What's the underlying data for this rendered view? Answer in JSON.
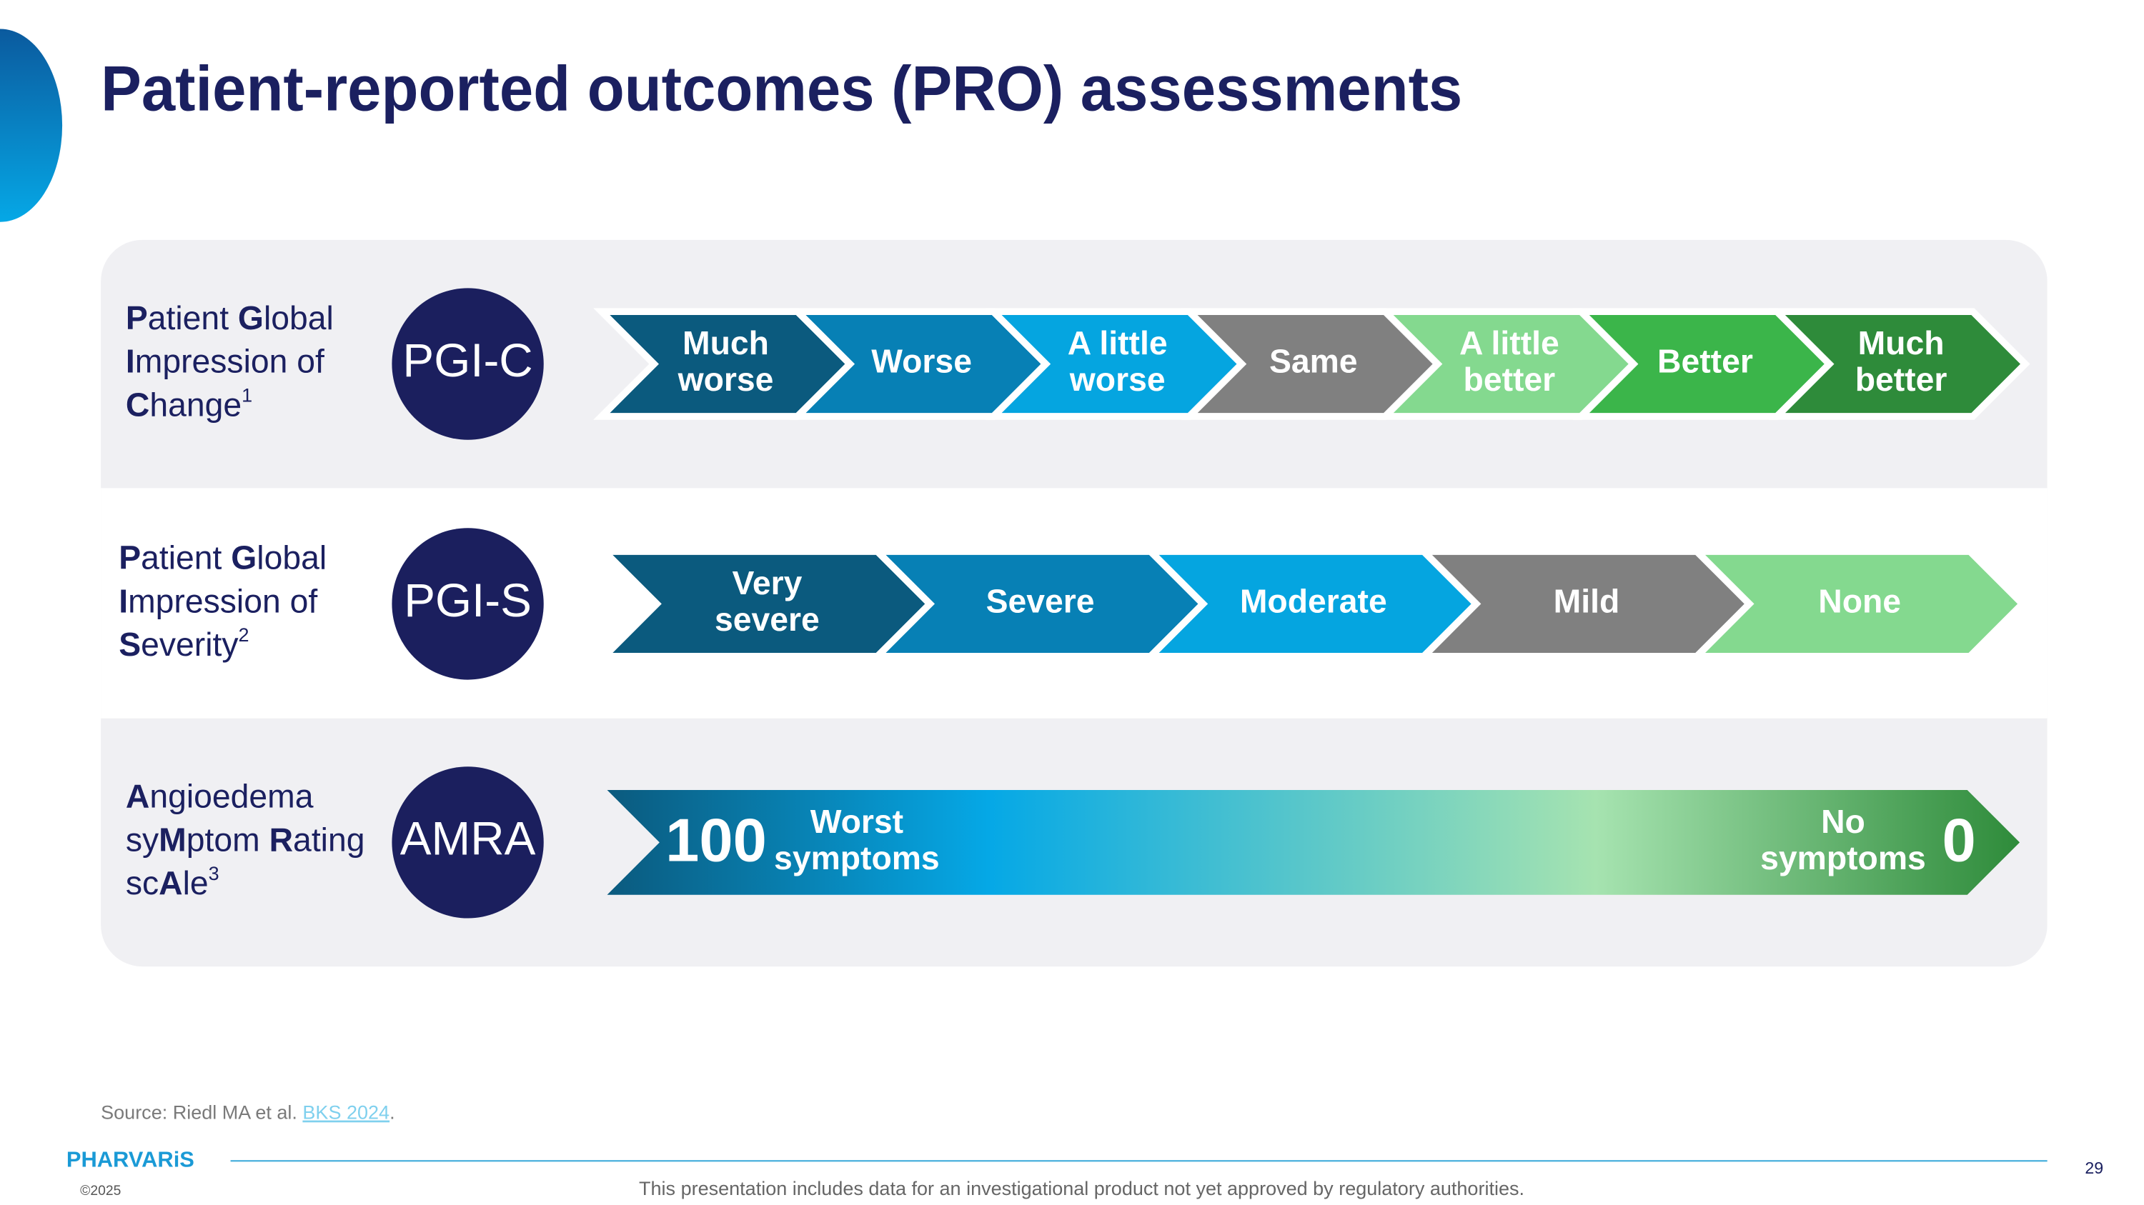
{
  "header": {
    "title": "Patient-reported outcomes (PRO) assessments"
  },
  "rows": [
    {
      "label_lines": [
        [
          {
            "text": "P",
            "bold": true
          },
          {
            "text": "atient "
          },
          {
            "text": "G",
            "bold": true
          },
          {
            "text": "lobal"
          }
        ],
        [
          {
            "text": "I",
            "bold": true
          },
          {
            "text": "mpression of"
          }
        ],
        [
          {
            "text": "C",
            "bold": true
          },
          {
            "text": "hange"
          },
          {
            "text": "1",
            "sup": true
          }
        ]
      ],
      "badge": "PGI-C",
      "steps": [
        {
          "label": [
            "Much",
            "worse"
          ],
          "color": "#0b5a7e"
        },
        {
          "label": [
            "Worse"
          ],
          "color": "#0780b5"
        },
        {
          "label": [
            "A little",
            "worse"
          ],
          "color": "#05a5e0"
        },
        {
          "label": [
            "Same"
          ],
          "color": "#808080"
        },
        {
          "label": [
            "A little",
            "better"
          ],
          "color": "#84d98f"
        },
        {
          "label": [
            "Better"
          ],
          "color": "#3bb54a"
        },
        {
          "label": [
            "Much",
            "better"
          ],
          "color": "#2e8b3a"
        }
      ]
    },
    {
      "label_lines": [
        [
          {
            "text": "P",
            "bold": true
          },
          {
            "text": "atient "
          },
          {
            "text": "G",
            "bold": true
          },
          {
            "text": "lobal"
          }
        ],
        [
          {
            "text": "I",
            "bold": true
          },
          {
            "text": "mpression of"
          }
        ],
        [
          {
            "text": "S",
            "bold": true
          },
          {
            "text": "everity"
          },
          {
            "text": "2",
            "sup": true
          }
        ]
      ],
      "badge": "PGI-S",
      "steps": [
        {
          "label": [
            "Very",
            "severe"
          ],
          "color": "#0b5a7e"
        },
        {
          "label": [
            "Severe"
          ],
          "color": "#0780b5"
        },
        {
          "label": [
            "Moderate"
          ],
          "color": "#05a5e0"
        },
        {
          "label": [
            "Mild"
          ],
          "color": "#808080"
        },
        {
          "label": [
            "None"
          ],
          "color": "#84d98f"
        }
      ]
    },
    {
      "label_lines": [
        [
          {
            "text": "A",
            "bold": true
          },
          {
            "text": "ngioedema"
          }
        ],
        [
          {
            "text": "sy"
          },
          {
            "text": "M",
            "bold": true
          },
          {
            "text": "ptom "
          },
          {
            "text": "R",
            "bold": true
          },
          {
            "text": "ating"
          }
        ],
        [
          {
            "text": "sc"
          },
          {
            "text": "A",
            "bold": true
          },
          {
            "text": "le"
          },
          {
            "text": "3",
            "sup": true
          }
        ]
      ],
      "badge": "AMRA",
      "scale": {
        "left_value": "100",
        "left_text": [
          "Worst",
          "symptoms"
        ],
        "right_text": [
          "No",
          "symptoms"
        ],
        "right_value": "0",
        "colors": [
          "#0b5a7e",
          "#05a8e6",
          "#a6e3b0",
          "#2e8b3a"
        ]
      }
    }
  ],
  "footer": {
    "source": "Source: Riedl MA et al. ",
    "source_link": "BKS 2024",
    "source_end": ".",
    "logo": "PHARVARiS",
    "copyright": "©2025",
    "disclaimer": "This presentation includes data for an investigational product not yet approved by regulatory authorities.",
    "page_number": "29"
  }
}
